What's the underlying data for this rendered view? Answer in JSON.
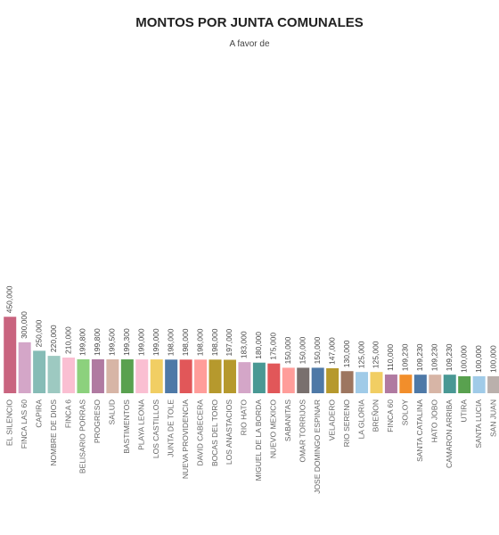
{
  "chart_data": {
    "type": "bar",
    "title": "MONTOS POR JUNTA COMUNALES",
    "subtitle": "A favor de",
    "categories": [
      "EL SILENCIO",
      "FINCA LAS 60",
      "CAPIRA",
      "NOMBRE DE DIOS",
      "FINCA 6",
      "BELISARIO PORRAS",
      "PROGRESO",
      "SALUD",
      "BASTIMENTOS",
      "PLAYA LEONA",
      "LOS CASTILLOS",
      "JUNTA DE TOLE",
      "NUEVA PROVIDENCIA",
      "DAVID CABECERA",
      "BOCAS DEL TORO",
      "LOS ANASTACIOS",
      "RIO HATO",
      "MIGUEL DE LA BORDA",
      "NUEVO MEXICO",
      "SABANITAS",
      "OMAR TORRIJOS",
      "JOSE DOMINGO ESPINAR",
      "VELADERO",
      "RIO SERENO",
      "LA GLORIA",
      "BREÑON",
      "FINCA 60",
      "SOLOY",
      "SANTA CATALINA",
      "HATO JOBO",
      "CAMARON ARRIBA",
      "UTIRA",
      "SANTA LUCIA",
      "SAN JUAN"
    ],
    "values": [
      450000,
      300000,
      250000,
      220000,
      210000,
      199800,
      199800,
      199500,
      199300,
      199000,
      199000,
      198000,
      198000,
      198000,
      198000,
      197000,
      183000,
      180000,
      175000,
      150000,
      150000,
      150000,
      147000,
      130000,
      125000,
      125000,
      110000,
      109230,
      109230,
      109230,
      109230,
      100000,
      100000,
      100000
    ],
    "value_labels": [
      "450,000",
      "300,000",
      "250,000",
      "220,000",
      "210,000",
      "199,800",
      "199,800",
      "199,500",
      "199,300",
      "199,000",
      "199,000",
      "198,000",
      "198,000",
      "198,000",
      "198,000",
      "197,000",
      "183,000",
      "180,000",
      "175,000",
      "150,000",
      "150,000",
      "150,000",
      "147,000",
      "130,000",
      "125,000",
      "125,000",
      "110,000",
      "109,230",
      "109,230",
      "109,230",
      "109,230",
      "100,000",
      "100,000",
      "100,000"
    ],
    "colors": [
      "#c9647f",
      "#d4a6c8",
      "#86bcb6",
      "#9dc9c1",
      "#fabfd2",
      "#8cd17d",
      "#b07aa1",
      "#d7b5a6",
      "#59a14f",
      "#fabfd2",
      "#f1ce63",
      "#4e79a7",
      "#e15759",
      "#ff9d9a",
      "#b6992d",
      "#b6992d",
      "#d4a6c8",
      "#499894",
      "#e15759",
      "#ff9d9a",
      "#79706e",
      "#4e79a7",
      "#b6992d",
      "#9d7660",
      "#a0cbe8",
      "#f1ce63",
      "#b07aa1",
      "#f28e2b",
      "#4e79a7",
      "#d7b5a6",
      "#499894",
      "#59a14f",
      "#a0cbe8",
      "#bab0ac"
    ],
    "ylim": [
      0,
      2000000
    ]
  }
}
